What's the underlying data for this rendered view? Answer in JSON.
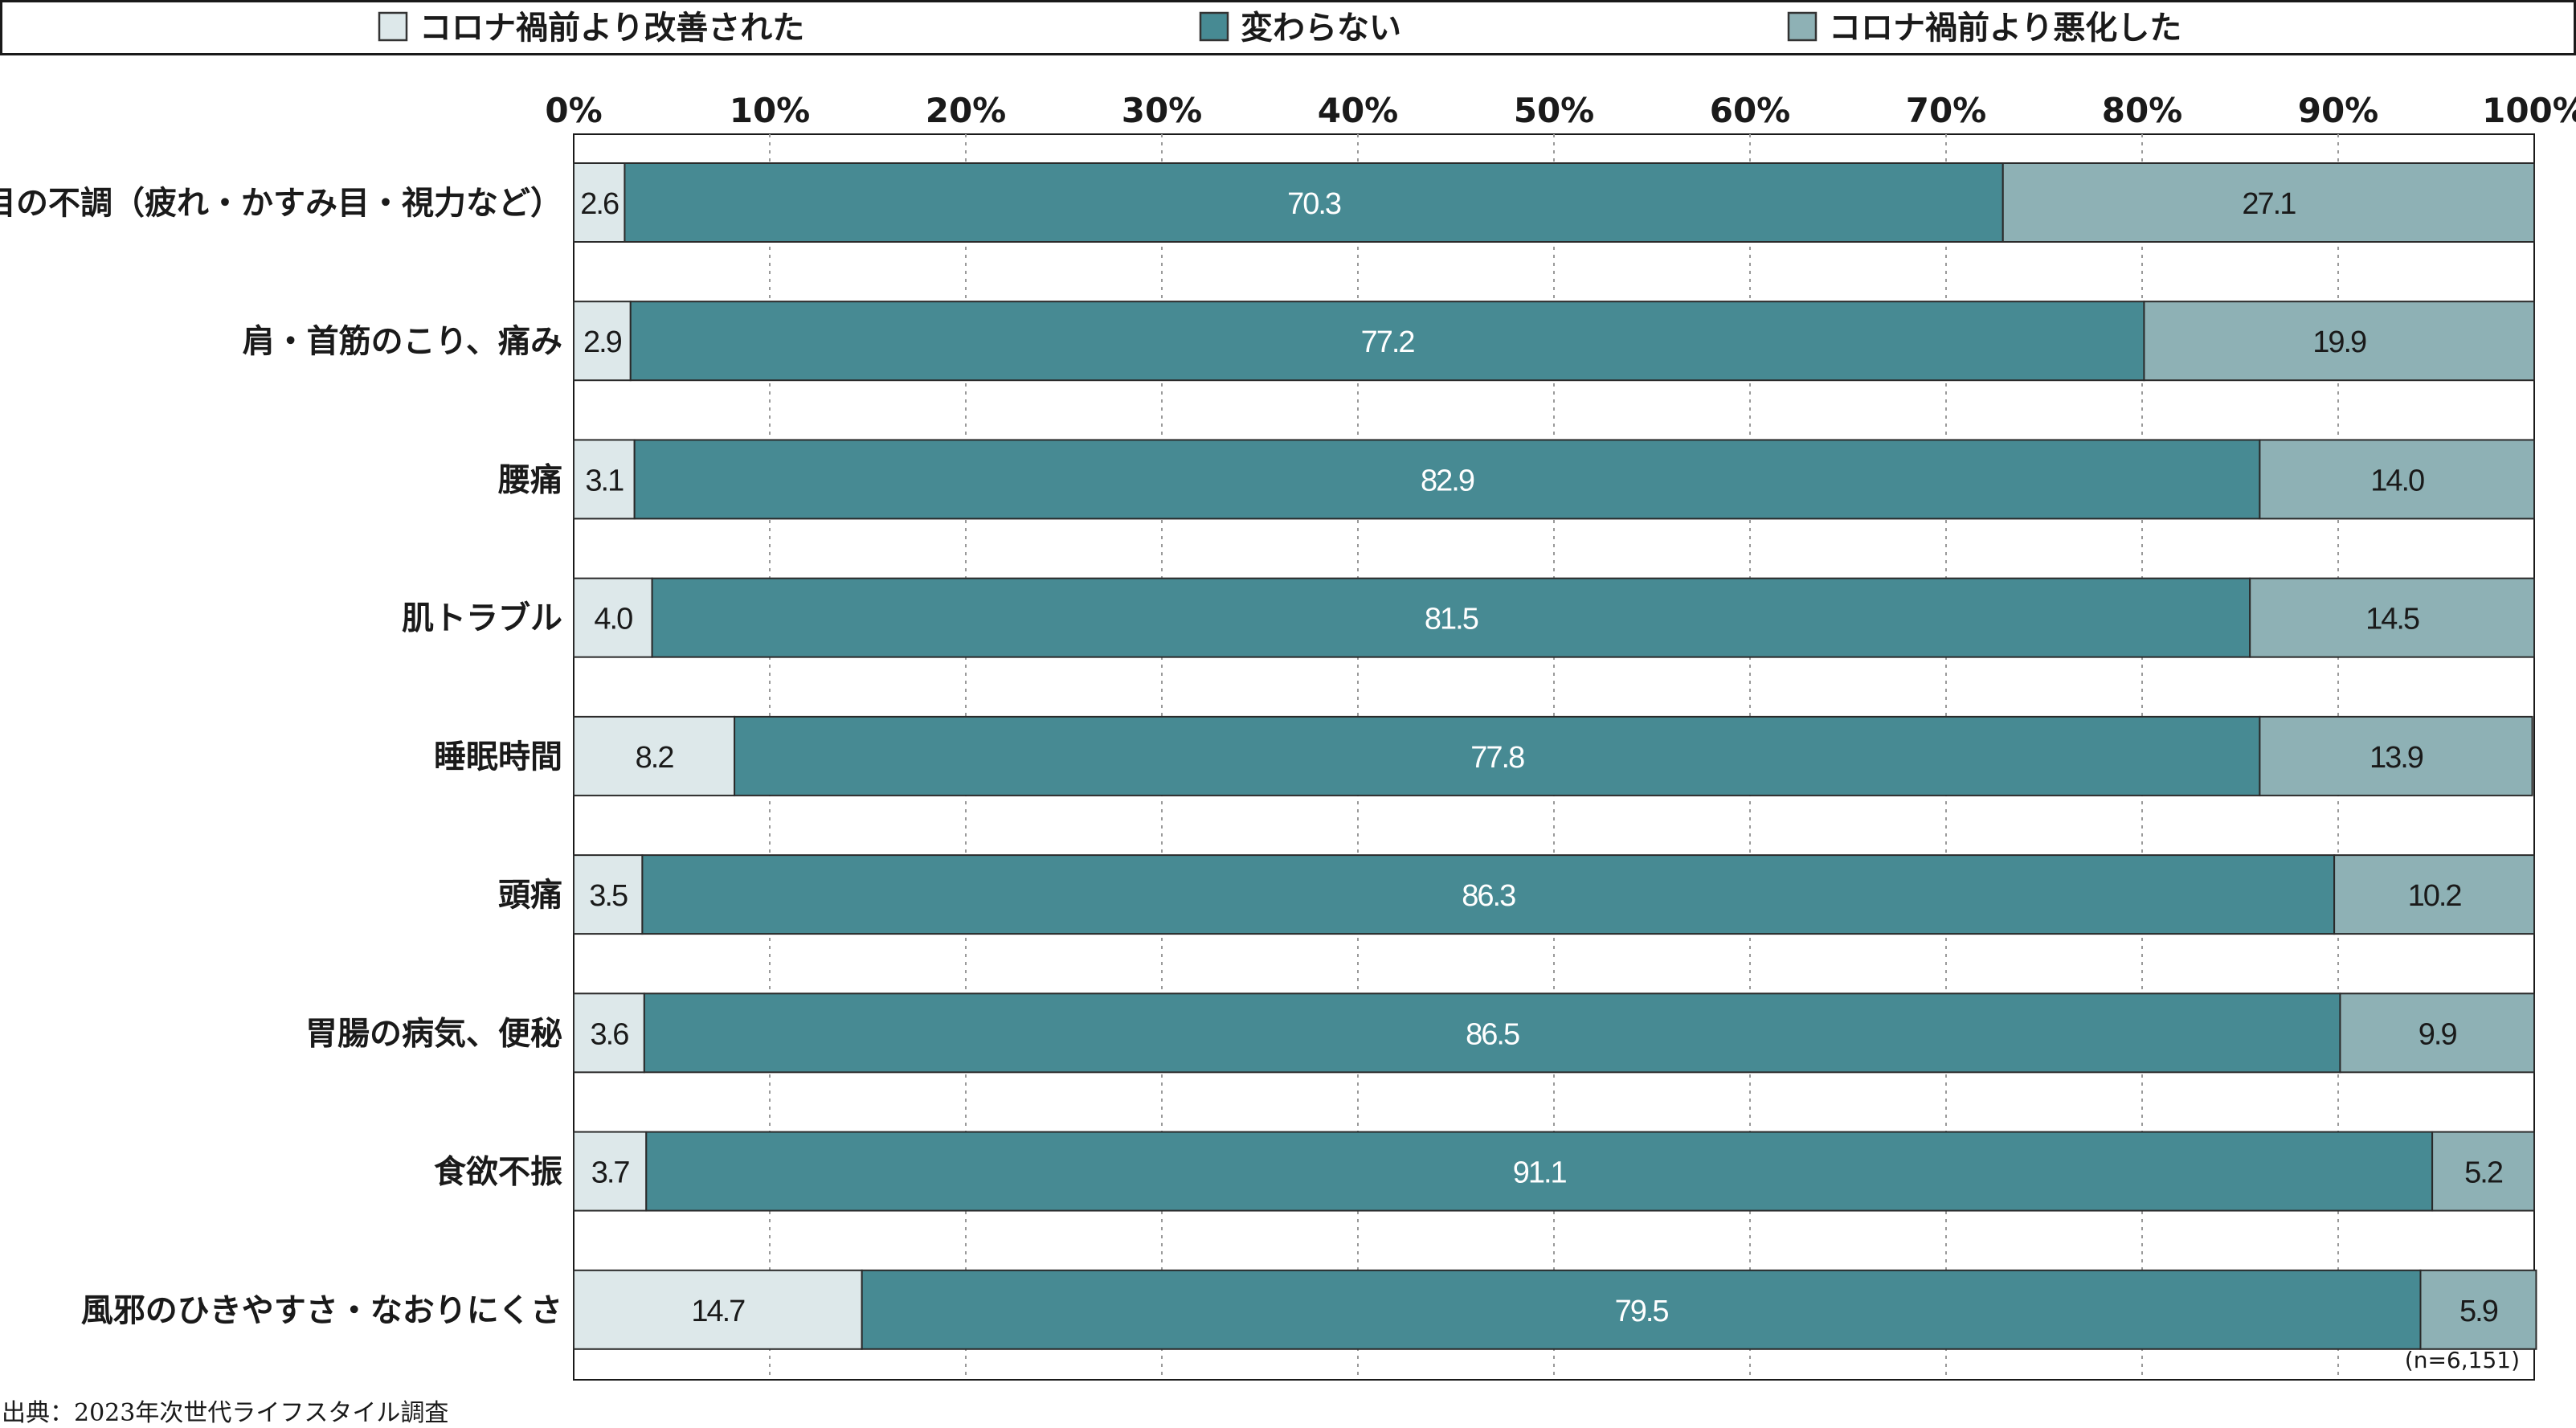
{
  "chart_data": {
    "type": "bar",
    "orientation": "horizontal",
    "stacked": true,
    "percent": true,
    "categories": [
      "目の不調（疲れ・かすみ目・視力など）",
      "肩・首筋のこり、痛み",
      "腰痛",
      "肌トラブル",
      "睡眠時間",
      "頭痛",
      "胃腸の病気、便秘",
      "食欲不振",
      "風邪のひきやすさ・なおりにくさ"
    ],
    "series": [
      {
        "name": "コロナ禍前より改善された",
        "color": "#dde8ea",
        "label_color": "#1a1a1a",
        "values": [
          2.6,
          2.9,
          3.1,
          4.0,
          8.2,
          3.5,
          3.6,
          3.7,
          14.7
        ],
        "labels": [
          "2.6",
          "2.9",
          "3.1",
          "4.0",
          "8.2",
          "3.5",
          "3.6",
          "3.7",
          "14.7"
        ]
      },
      {
        "name": "変わらない",
        "color": "#478a93",
        "label_color": "#ffffff",
        "values": [
          70.3,
          77.2,
          82.9,
          81.5,
          77.8,
          86.3,
          86.5,
          91.1,
          79.5
        ],
        "labels": [
          "70.3",
          "77.2",
          "82.9",
          "81.5",
          "77.8",
          "86.3",
          "86.5",
          "91.1",
          "79.5"
        ]
      },
      {
        "name": "コロナ禍前より悪化した",
        "color": "#8eb1b5",
        "label_color": "#1a1a1a",
        "values": [
          27.1,
          19.9,
          14.0,
          14.5,
          13.9,
          10.2,
          9.9,
          5.2,
          5.9
        ],
        "labels": [
          "27.1",
          "19.9",
          "14.0",
          "14.5",
          "13.9",
          "10.2",
          "9.9",
          "5.2",
          "5.9"
        ]
      }
    ],
    "xlim": [
      0,
      100
    ],
    "xticks": [
      "0%",
      "10%",
      "20%",
      "30%",
      "40%",
      "50%",
      "60%",
      "70%",
      "80%",
      "90%",
      "100%"
    ],
    "grid": true,
    "legend_position": "top",
    "note": "(n=6,151)",
    "source": "出典：2023年次世代ライフスタイル調査"
  }
}
